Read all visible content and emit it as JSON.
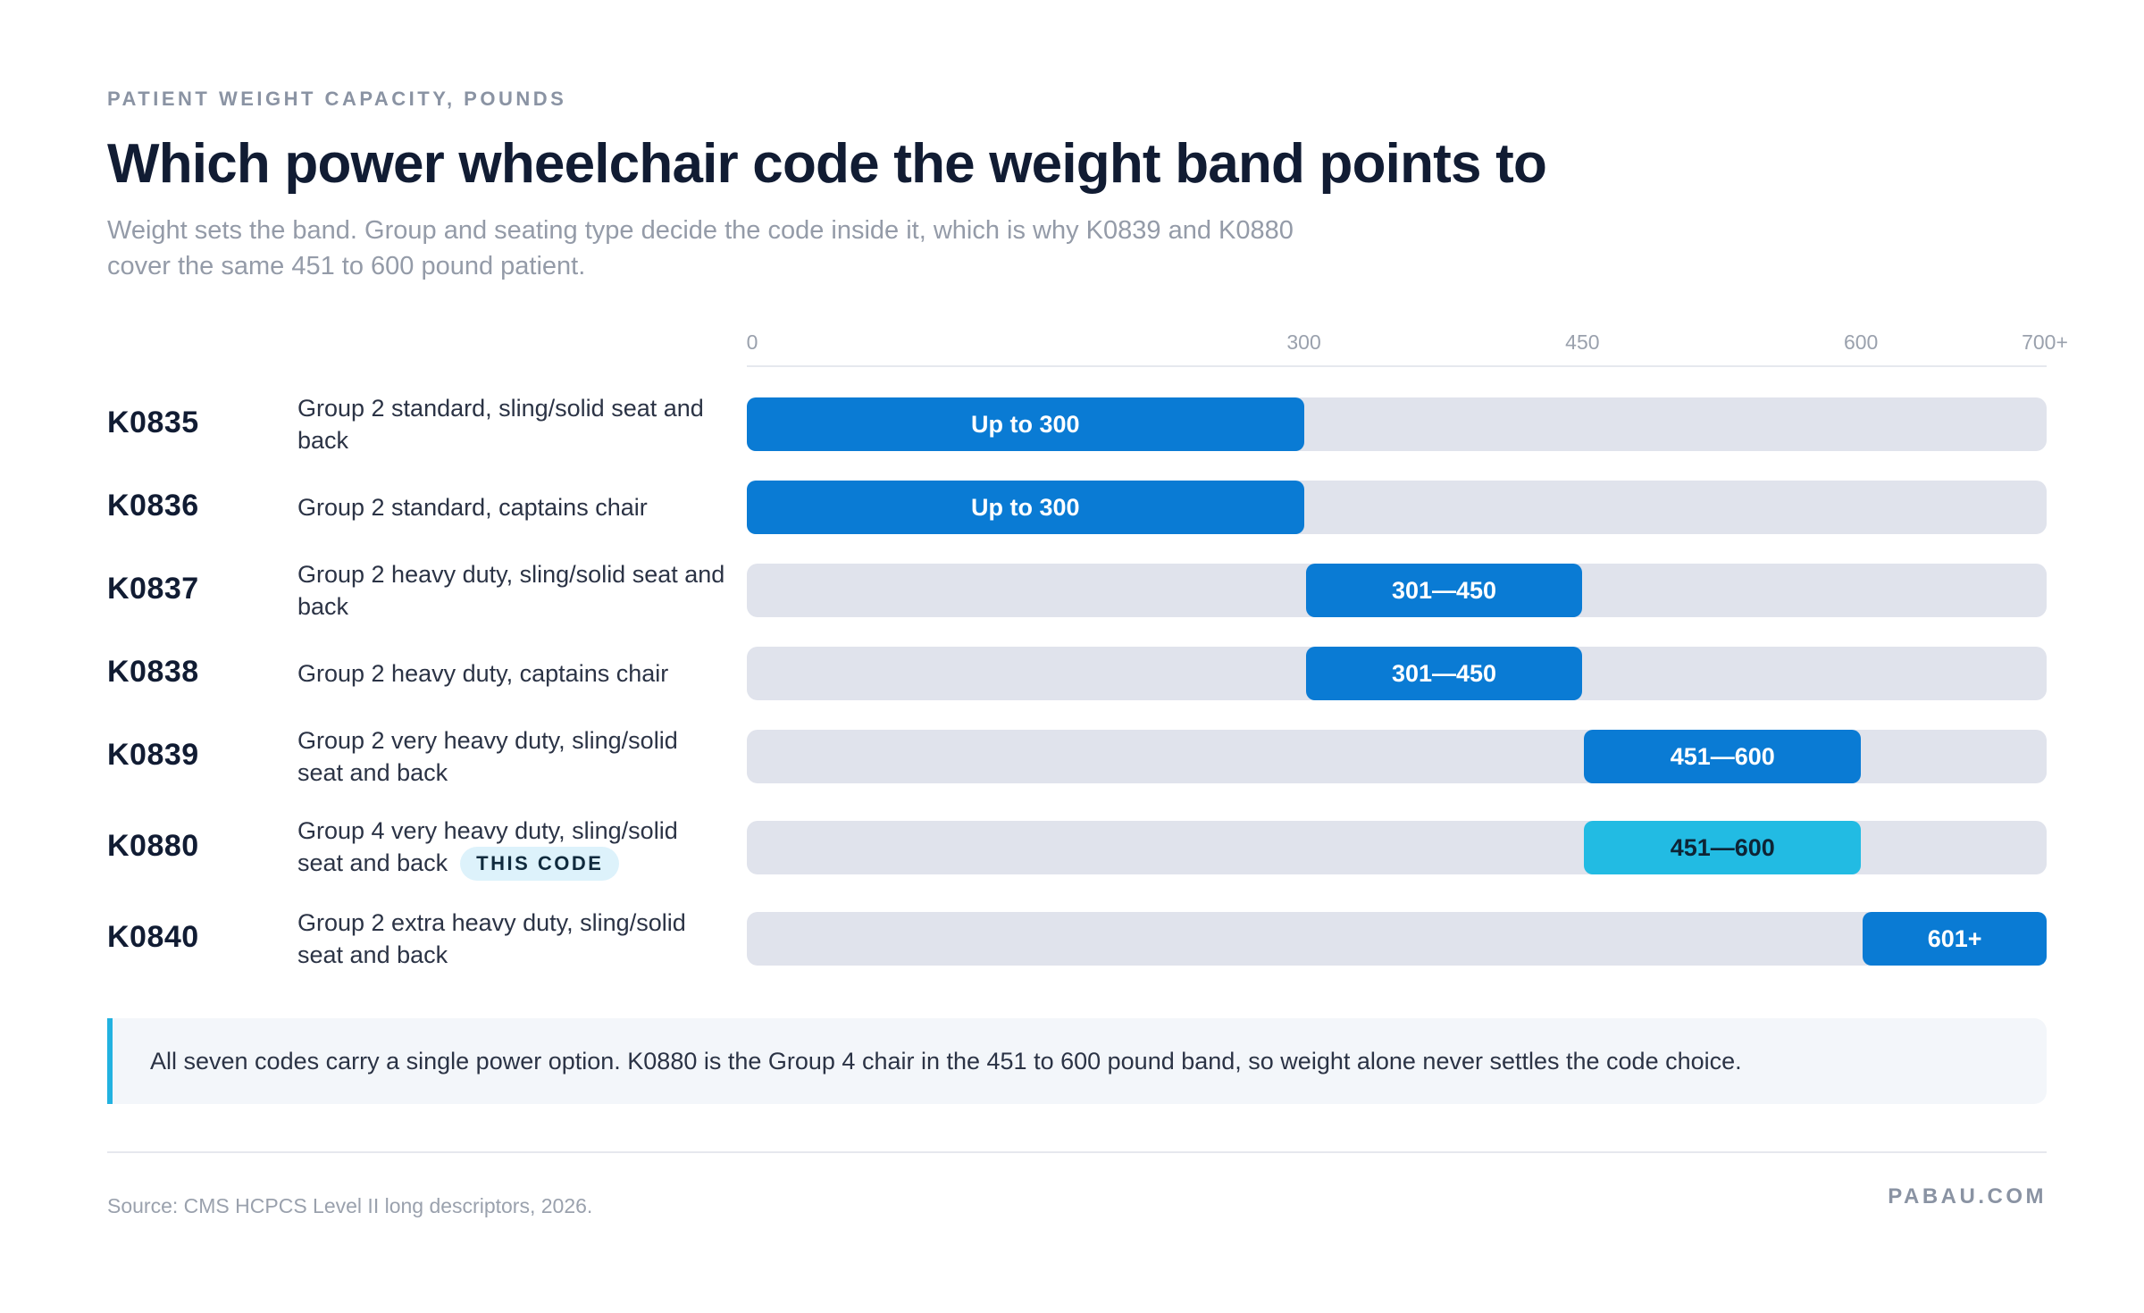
{
  "header": {
    "eyebrow": "PATIENT WEIGHT CAPACITY, POUNDS",
    "title": "Which power wheelchair code the weight band points to",
    "subtitle": "Weight sets the band. Group and seating type decide the code inside it, which is why K0839 and K0880 cover the same 451 to 600 pound patient."
  },
  "chart_data": {
    "type": "bar",
    "orientation": "horizontal-range",
    "xlim": [
      0,
      700
    ],
    "x_ticks": [
      {
        "value": 0,
        "label": "0"
      },
      {
        "value": 300,
        "label": "300"
      },
      {
        "value": 450,
        "label": "450"
      },
      {
        "value": 600,
        "label": "600"
      },
      {
        "value": 700,
        "label": "700+"
      }
    ],
    "rows": [
      {
        "code": "K0835",
        "description": "Group 2 standard, sling/solid seat and back",
        "start": 0,
        "end": 300,
        "label": "Up to 300",
        "highlight": false
      },
      {
        "code": "K0836",
        "description": "Group 2 standard, captains chair",
        "start": 0,
        "end": 300,
        "label": "Up to 300",
        "highlight": false
      },
      {
        "code": "K0837",
        "description": "Group 2 heavy duty, sling/solid seat and back",
        "start": 301,
        "end": 450,
        "label": "301—450",
        "highlight": false
      },
      {
        "code": "K0838",
        "description": "Group 2 heavy duty, captains chair",
        "start": 301,
        "end": 450,
        "label": "301—450",
        "highlight": false
      },
      {
        "code": "K0839",
        "description": "Group 2 very heavy duty, sling/solid seat and back",
        "start": 451,
        "end": 600,
        "label": "451—600",
        "highlight": false
      },
      {
        "code": "K0880",
        "description": "Group 4 very heavy duty, sling/solid seat and back",
        "start": 451,
        "end": 600,
        "label": "451—600",
        "highlight": true,
        "badge": "THIS CODE"
      },
      {
        "code": "K0840",
        "description": "Group 2 extra heavy duty, sling/solid seat and back",
        "start": 601,
        "end": 700,
        "label": "601+",
        "highlight": false
      }
    ],
    "colors": {
      "bar": "#0a7bd4",
      "highlight": "#22bbe3",
      "track": "#e0e3ec"
    }
  },
  "note": {
    "text": "All seven codes carry a single power option. K0880 is the Group 4 chair in the 451 to 600 pound band, so weight alone never settles the code choice."
  },
  "footer": {
    "source": "Source: CMS HCPCS Level II long descriptors, 2026.",
    "brand": "PABAU.COM"
  }
}
